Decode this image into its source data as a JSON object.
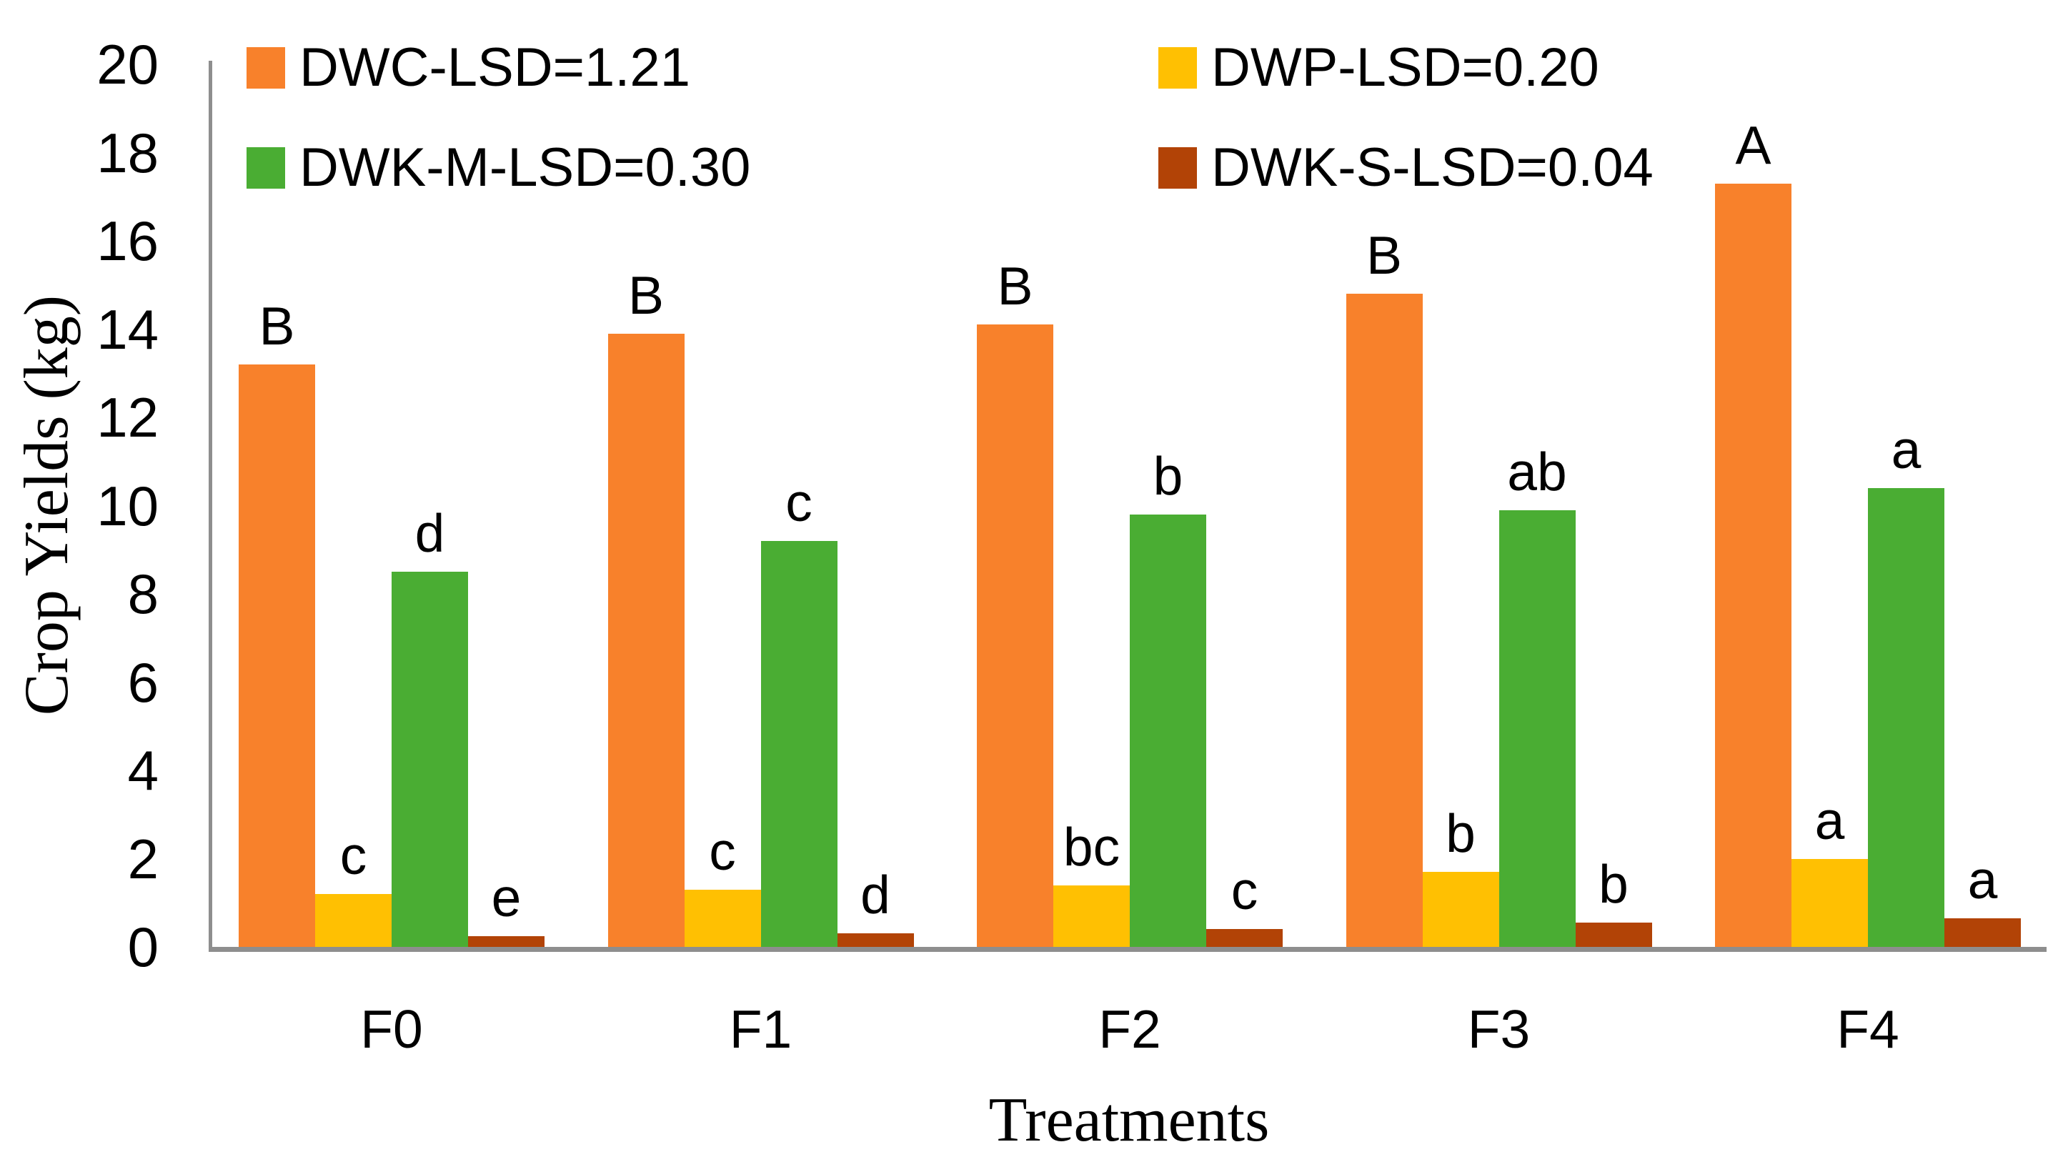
{
  "chart_data": {
    "type": "bar",
    "title": "",
    "xlabel": "Treatments",
    "ylabel": "Crop Yields (kg)",
    "categories": [
      "F0",
      "F1",
      "F2",
      "F3",
      "F4"
    ],
    "ylim": [
      0,
      20
    ],
    "yticks": [
      0,
      2,
      4,
      6,
      8,
      10,
      12,
      14,
      16,
      18,
      20
    ],
    "grid": false,
    "legend_position": "inside-top-two-columns",
    "axis_color": "#8E8E8E",
    "text_color": "#000000",
    "background": "#FFFFFF",
    "series": [
      {
        "name": "DWC-LSD=1.21",
        "color": "#F8812B",
        "values": [
          13.2,
          13.9,
          14.1,
          14.8,
          17.3
        ],
        "bar_labels": [
          "B",
          "B",
          "B",
          "B",
          "A"
        ]
      },
      {
        "name": "DWP-LSD=0.20",
        "color": "#FFC002",
        "values": [
          1.2,
          1.3,
          1.4,
          1.7,
          2.0
        ],
        "bar_labels": [
          "c",
          "c",
          "bc",
          "b",
          "a"
        ]
      },
      {
        "name": "DWK-M-LSD=0.30",
        "color": "#4AAD33",
        "values": [
          8.5,
          9.2,
          9.8,
          9.9,
          10.4
        ],
        "bar_labels": [
          "d",
          "c",
          "b",
          "ab",
          "a"
        ]
      },
      {
        "name": "DWK-S-LSD=0.04",
        "color": "#B24306",
        "values": [
          0.25,
          0.3,
          0.4,
          0.55,
          0.65
        ],
        "bar_labels": [
          "e",
          "d",
          "c",
          "b",
          "a"
        ]
      }
    ]
  },
  "legend": {
    "column_1_rows": [
      "DWC-LSD=1.21",
      "DWK-M-LSD=0.30"
    ],
    "column_2_rows": [
      "DWP-LSD=0.20",
      "DWK-S-LSD=0.04"
    ]
  }
}
